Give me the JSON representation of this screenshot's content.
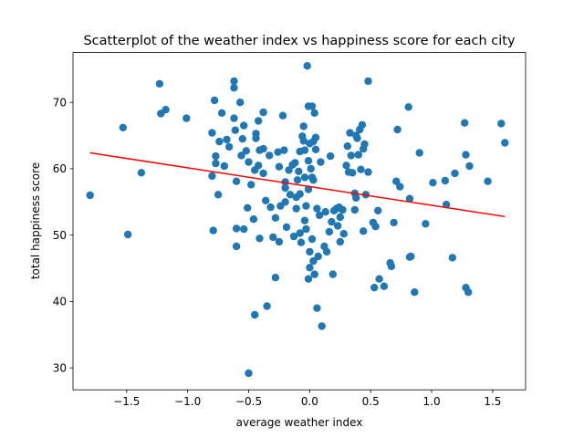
{
  "chart_data": {
    "type": "scatter",
    "title": "Scatterplot of the weather index vs happiness score for each city",
    "xlabel": "average weather index",
    "ylabel": "total happiness score",
    "xlim": [
      -1.94,
      1.77
    ],
    "ylim": [
      26.7,
      77.5
    ],
    "xticks": [
      -1.5,
      -1.0,
      -0.5,
      0.0,
      0.5,
      1.0,
      1.5
    ],
    "xtick_labels": [
      "−1.5",
      "−1.0",
      "−0.5",
      "0.0",
      "0.5",
      "1.0",
      "1.5"
    ],
    "yticks": [
      30,
      40,
      50,
      60,
      70
    ],
    "ytick_labels": [
      "30",
      "40",
      "50",
      "60",
      "70"
    ],
    "grid": false,
    "colors": {
      "points": "#1f77b4",
      "trend": "#ff0000"
    },
    "trend_line": {
      "x": [
        -1.8,
        1.6
      ],
      "y": [
        62.4,
        52.8
      ]
    },
    "points": [
      [
        -1.8,
        56.0
      ],
      [
        -1.53,
        66.2
      ],
      [
        -1.49,
        50.1
      ],
      [
        -1.38,
        59.4
      ],
      [
        -1.23,
        72.8
      ],
      [
        -1.22,
        68.3
      ],
      [
        -1.18,
        68.9
      ],
      [
        -1.01,
        67.6
      ],
      [
        -0.8,
        65.4
      ],
      [
        -0.8,
        58.9
      ],
      [
        -0.79,
        50.7
      ],
      [
        -0.78,
        70.3
      ],
      [
        -0.77,
        61.9
      ],
      [
        -0.77,
        60.8
      ],
      [
        -0.75,
        56.1
      ],
      [
        -0.74,
        64.1
      ],
      [
        -0.72,
        68.4
      ],
      [
        -0.7,
        60.4
      ],
      [
        -0.68,
        64.4
      ],
      [
        -0.66,
        63.3
      ],
      [
        -0.62,
        73.2
      ],
      [
        -0.62,
        72.2
      ],
      [
        -0.62,
        67.6
      ],
      [
        -0.61,
        65.8
      ],
      [
        -0.6,
        58.1
      ],
      [
        -0.6,
        51.0
      ],
      [
        -0.6,
        48.3
      ],
      [
        -0.57,
        70.0
      ],
      [
        -0.56,
        62.0
      ],
      [
        -0.55,
        64.5
      ],
      [
        -0.54,
        66.5
      ],
      [
        -0.54,
        50.9
      ],
      [
        -0.52,
        62.7
      ],
      [
        -0.51,
        54.1
      ],
      [
        -0.5,
        61.0
      ],
      [
        -0.5,
        29.2
      ],
      [
        -0.48,
        57.6
      ],
      [
        -0.46,
        52.4
      ],
      [
        -0.45,
        59.8
      ],
      [
        -0.45,
        38.0
      ],
      [
        -0.44,
        65.3
      ],
      [
        -0.44,
        64.6
      ],
      [
        -0.42,
        67.2
      ],
      [
        -0.42,
        60.5
      ],
      [
        -0.41,
        62.8
      ],
      [
        -0.41,
        49.5
      ],
      [
        -0.38,
        68.5
      ],
      [
        -0.38,
        63.0
      ],
      [
        -0.38,
        59.3
      ],
      [
        -0.36,
        55.2
      ],
      [
        -0.35,
        39.3
      ],
      [
        -0.33,
        62.0
      ],
      [
        -0.32,
        54.2
      ],
      [
        -0.3,
        49.7
      ],
      [
        -0.28,
        52.6
      ],
      [
        -0.28,
        43.6
      ],
      [
        -0.26,
        62.5
      ],
      [
        -0.25,
        60.3
      ],
      [
        -0.25,
        49.0
      ],
      [
        -0.24,
        54.4
      ],
      [
        -0.22,
        68.0
      ],
      [
        -0.21,
        62.8
      ],
      [
        -0.2,
        58.0
      ],
      [
        -0.2,
        57.1
      ],
      [
        -0.2,
        55.0
      ],
      [
        -0.19,
        51.2
      ],
      [
        -0.17,
        59.8
      ],
      [
        -0.16,
        56.1
      ],
      [
        -0.14,
        60.6
      ],
      [
        -0.13,
        49.8
      ],
      [
        -0.12,
        60.9
      ],
      [
        -0.11,
        55.7
      ],
      [
        -0.11,
        54.0
      ],
      [
        -0.1,
        58.3
      ],
      [
        -0.09,
        59.6
      ],
      [
        -0.08,
        62.6
      ],
      [
        -0.08,
        56.2
      ],
      [
        -0.08,
        50.3
      ],
      [
        -0.07,
        48.9
      ],
      [
        -0.06,
        64.9
      ],
      [
        -0.05,
        64.2
      ],
      [
        -0.05,
        66.4
      ],
      [
        -0.04,
        62.8
      ],
      [
        -0.04,
        58.7
      ],
      [
        -0.04,
        52.2
      ],
      [
        -0.03,
        54.4
      ],
      [
        -0.03,
        50.9
      ],
      [
        -0.02,
        75.5
      ],
      [
        -0.01,
        69.4
      ],
      [
        -0.01,
        61.2
      ],
      [
        -0.01,
        56.9
      ],
      [
        -0.01,
        43.4
      ],
      [
        0.0,
        63.8
      ],
      [
        0.0,
        47.5
      ],
      [
        0.0,
        45.1
      ],
      [
        0.01,
        60.0
      ],
      [
        0.02,
        69.4
      ],
      [
        0.02,
        58.7
      ],
      [
        0.02,
        49.4
      ],
      [
        0.03,
        64.1
      ],
      [
        0.03,
        58.3
      ],
      [
        0.03,
        46.1
      ],
      [
        0.04,
        68.4
      ],
      [
        0.04,
        44.1
      ],
      [
        0.05,
        64.7
      ],
      [
        0.05,
        62.9
      ],
      [
        0.06,
        54.0
      ],
      [
        0.06,
        39.0
      ],
      [
        0.07,
        46.8
      ],
      [
        0.08,
        53.0
      ],
      [
        0.09,
        61.0
      ],
      [
        0.1,
        36.3
      ],
      [
        0.12,
        48.3
      ],
      [
        0.13,
        53.5
      ],
      [
        0.14,
        47.5
      ],
      [
        0.16,
        50.5
      ],
      [
        0.17,
        61.9
      ],
      [
        0.18,
        52.0
      ],
      [
        0.19,
        44.1
      ],
      [
        0.2,
        53.7
      ],
      [
        0.22,
        54.0
      ],
      [
        0.23,
        51.4
      ],
      [
        0.24,
        54.2
      ],
      [
        0.25,
        52.7
      ],
      [
        0.25,
        49.0
      ],
      [
        0.27,
        53.8
      ],
      [
        0.28,
        50.2
      ],
      [
        0.3,
        60.5
      ],
      [
        0.31,
        63.4
      ],
      [
        0.32,
        59.5
      ],
      [
        0.33,
        65.4
      ],
      [
        0.34,
        62.0
      ],
      [
        0.35,
        59.4
      ],
      [
        0.37,
        53.8
      ],
      [
        0.37,
        56.3
      ],
      [
        0.38,
        55.6
      ],
      [
        0.38,
        65.0
      ],
      [
        0.39,
        64.6
      ],
      [
        0.4,
        62.1
      ],
      [
        0.41,
        65.9
      ],
      [
        0.42,
        59.9
      ],
      [
        0.43,
        66.6
      ],
      [
        0.44,
        63.0
      ],
      [
        0.44,
        50.6
      ],
      [
        0.45,
        63.7
      ],
      [
        0.46,
        56.1
      ],
      [
        0.48,
        73.2
      ],
      [
        0.48,
        59.5
      ],
      [
        0.52,
        51.9
      ],
      [
        0.53,
        42.1
      ],
      [
        0.54,
        51.3
      ],
      [
        0.56,
        53.7
      ],
      [
        0.57,
        43.4
      ],
      [
        0.61,
        42.3
      ],
      [
        0.66,
        45.8
      ],
      [
        0.67,
        45.3
      ],
      [
        0.69,
        51.9
      ],
      [
        0.71,
        58.1
      ],
      [
        0.72,
        65.9
      ],
      [
        0.74,
        57.3
      ],
      [
        0.81,
        69.3
      ],
      [
        0.82,
        55.5
      ],
      [
        0.82,
        46.7
      ],
      [
        0.83,
        46.8
      ],
      [
        0.86,
        41.4
      ],
      [
        0.9,
        62.4
      ],
      [
        0.95,
        51.7
      ],
      [
        1.01,
        57.9
      ],
      [
        1.11,
        58.2
      ],
      [
        1.12,
        54.6
      ],
      [
        1.17,
        46.6
      ],
      [
        1.19,
        59.3
      ],
      [
        1.27,
        66.9
      ],
      [
        1.28,
        62.1
      ],
      [
        1.28,
        42.1
      ],
      [
        1.3,
        41.4
      ],
      [
        1.31,
        60.4
      ],
      [
        1.46,
        58.1
      ],
      [
        1.57,
        66.8
      ],
      [
        1.6,
        63.9
      ]
    ]
  }
}
